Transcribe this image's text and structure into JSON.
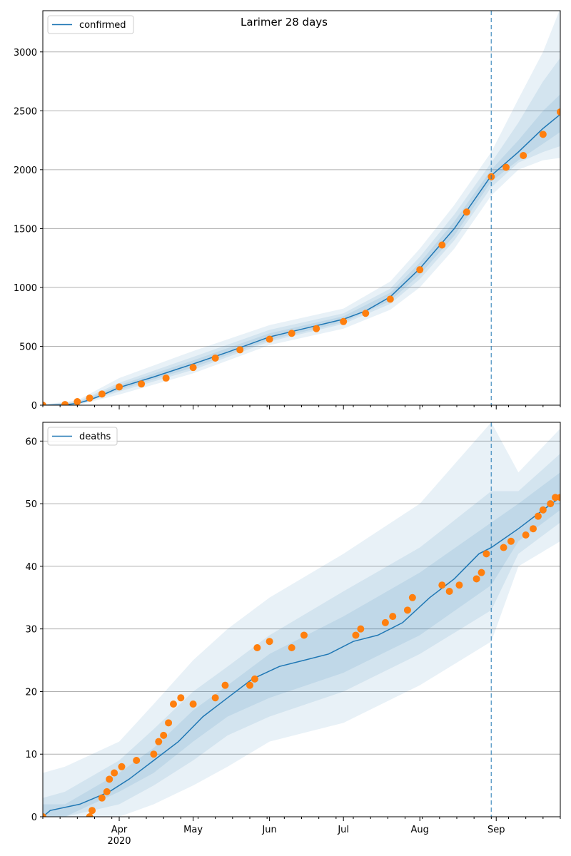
{
  "title": "Larimer 28 days",
  "colors": {
    "model_line": "#1f77b4",
    "band": "#1f77b4",
    "observed": "#ff7f0e",
    "grid": "#b0b0b0",
    "forecast_marker": "#1f77b4"
  },
  "x_axis": {
    "start": "2020-03-01",
    "end": "2020-09-27",
    "month_ticks": [
      {
        "date": "2020-04-01",
        "label": "Apr",
        "sublabel": "2020"
      },
      {
        "date": "2020-05-01",
        "label": "May",
        "sublabel": ""
      },
      {
        "date": "2020-06-01",
        "label": "Jun",
        "sublabel": ""
      },
      {
        "date": "2020-07-01",
        "label": "Jul",
        "sublabel": ""
      },
      {
        "date": "2020-08-01",
        "label": "Aug",
        "sublabel": ""
      },
      {
        "date": "2020-09-01",
        "label": "Sep",
        "sublabel": ""
      }
    ],
    "forecast_start": "2020-08-30"
  },
  "chart_data": [
    {
      "type": "line",
      "series_name": "confirmed",
      "legend": "confirmed",
      "legend_position": "top-left",
      "grid": true,
      "ylim": [
        0,
        3350
      ],
      "yticks": [
        0,
        500,
        1000,
        1500,
        2000,
        2500,
        3000
      ],
      "model_line": [
        [
          "2020-03-01",
          0
        ],
        [
          "2020-03-10",
          3
        ],
        [
          "2020-03-15",
          15
        ],
        [
          "2020-03-20",
          45
        ],
        [
          "2020-03-25",
          85
        ],
        [
          "2020-04-01",
          150
        ],
        [
          "2020-04-15",
          240
        ],
        [
          "2020-05-01",
          350
        ],
        [
          "2020-05-15",
          450
        ],
        [
          "2020-06-01",
          580
        ],
        [
          "2020-06-15",
          650
        ],
        [
          "2020-07-01",
          730
        ],
        [
          "2020-07-10",
          800
        ],
        [
          "2020-07-20",
          920
        ],
        [
          "2020-08-01",
          1160
        ],
        [
          "2020-08-15",
          1500
        ],
        [
          "2020-08-30",
          1950
        ],
        [
          "2020-09-10",
          2150
        ],
        [
          "2020-09-20",
          2350
        ],
        [
          "2020-09-27",
          2470
        ]
      ],
      "bands": [
        {
          "level": "outer",
          "dates": [
            "2020-03-01",
            "2020-03-15",
            "2020-04-01",
            "2020-05-01",
            "2020-06-01",
            "2020-07-01",
            "2020-07-20",
            "2020-08-01",
            "2020-08-15",
            "2020-08-30",
            "2020-09-10",
            "2020-09-20",
            "2020-09-27"
          ],
          "upper": [
            5,
            40,
            230,
            460,
            680,
            820,
            1050,
            1330,
            1700,
            2150,
            2600,
            3000,
            3370
          ],
          "lower": [
            0,
            0,
            90,
            270,
            510,
            650,
            810,
            1000,
            1330,
            1780,
            2000,
            2080,
            2100
          ]
        },
        {
          "level": "middle",
          "dates": [
            "2020-03-01",
            "2020-03-15",
            "2020-04-01",
            "2020-05-01",
            "2020-06-01",
            "2020-07-01",
            "2020-07-20",
            "2020-08-01",
            "2020-08-15",
            "2020-08-30",
            "2020-09-10",
            "2020-09-20",
            "2020-09-27"
          ],
          "upper": [
            3,
            30,
            190,
            410,
            640,
            780,
            990,
            1260,
            1620,
            2060,
            2400,
            2750,
            2950
          ],
          "lower": [
            0,
            5,
            115,
            300,
            540,
            690,
            860,
            1070,
            1400,
            1850,
            2060,
            2150,
            2200
          ]
        },
        {
          "level": "inner",
          "dates": [
            "2020-03-01",
            "2020-03-15",
            "2020-04-01",
            "2020-05-01",
            "2020-06-01",
            "2020-07-01",
            "2020-07-20",
            "2020-08-01",
            "2020-08-15",
            "2020-08-30",
            "2020-09-10",
            "2020-09-20",
            "2020-09-27"
          ],
          "upper": [
            2,
            22,
            170,
            380,
            610,
            755,
            955,
            1210,
            1560,
            2000,
            2250,
            2500,
            2640
          ],
          "lower": [
            0,
            8,
            130,
            320,
            555,
            705,
            885,
            1110,
            1440,
            1900,
            2080,
            2220,
            2320
          ]
        }
      ],
      "observed": [
        [
          "2020-03-01",
          0
        ],
        [
          "2020-03-10",
          5
        ],
        [
          "2020-03-15",
          30
        ],
        [
          "2020-03-20",
          60
        ],
        [
          "2020-03-25",
          95
        ],
        [
          "2020-04-01",
          155
        ],
        [
          "2020-04-10",
          180
        ],
        [
          "2020-04-20",
          230
        ],
        [
          "2020-05-01",
          320
        ],
        [
          "2020-05-10",
          400
        ],
        [
          "2020-05-20",
          470
        ],
        [
          "2020-06-01",
          560
        ],
        [
          "2020-06-10",
          610
        ],
        [
          "2020-06-20",
          650
        ],
        [
          "2020-07-01",
          710
        ],
        [
          "2020-07-10",
          780
        ],
        [
          "2020-07-20",
          900
        ],
        [
          "2020-08-01",
          1150
        ],
        [
          "2020-08-10",
          1360
        ],
        [
          "2020-08-20",
          1640
        ],
        [
          "2020-08-30",
          1940
        ],
        [
          "2020-09-05",
          2020
        ],
        [
          "2020-09-12",
          2120
        ],
        [
          "2020-09-20",
          2300
        ],
        [
          "2020-09-27",
          2490
        ]
      ]
    },
    {
      "type": "line",
      "series_name": "deaths",
      "legend": "deaths",
      "legend_position": "top-left",
      "grid": true,
      "ylim": [
        0,
        63
      ],
      "yticks": [
        0,
        10,
        20,
        30,
        40,
        50,
        60
      ],
      "model_line": [
        [
          "2020-03-01",
          0
        ],
        [
          "2020-03-04",
          1
        ],
        [
          "2020-03-16",
          2
        ],
        [
          "2020-03-22",
          3
        ],
        [
          "2020-03-28",
          4
        ],
        [
          "2020-04-05",
          6
        ],
        [
          "2020-04-15",
          9
        ],
        [
          "2020-04-25",
          12
        ],
        [
          "2020-05-05",
          16
        ],
        [
          "2020-05-15",
          19
        ],
        [
          "2020-05-25",
          22
        ],
        [
          "2020-06-05",
          24
        ],
        [
          "2020-06-15",
          25
        ],
        [
          "2020-06-25",
          26
        ],
        [
          "2020-07-05",
          28
        ],
        [
          "2020-07-15",
          29
        ],
        [
          "2020-07-25",
          31
        ],
        [
          "2020-08-05",
          35
        ],
        [
          "2020-08-15",
          38
        ],
        [
          "2020-08-25",
          42
        ],
        [
          "2020-08-30",
          43
        ],
        [
          "2020-09-10",
          46
        ],
        [
          "2020-09-20",
          49
        ],
        [
          "2020-09-27",
          51
        ]
      ],
      "bands": [
        {
          "level": "outer",
          "dates": [
            "2020-03-01",
            "2020-03-10",
            "2020-04-01",
            "2020-04-15",
            "2020-05-01",
            "2020-05-15",
            "2020-06-01",
            "2020-07-01",
            "2020-08-01",
            "2020-08-30",
            "2020-09-10",
            "2020-09-27"
          ],
          "upper": [
            7,
            8,
            12,
            18,
            25,
            30,
            35,
            42,
            50,
            63,
            55,
            62
          ],
          "lower": [
            0,
            0,
            0,
            2,
            5,
            8,
            12,
            15,
            21,
            28,
            40,
            44
          ]
        },
        {
          "level": "middle",
          "dates": [
            "2020-03-01",
            "2020-03-10",
            "2020-04-01",
            "2020-04-15",
            "2020-05-01",
            "2020-05-15",
            "2020-06-01",
            "2020-07-01",
            "2020-08-01",
            "2020-08-30",
            "2020-09-10",
            "2020-09-27"
          ],
          "upper": [
            3,
            4,
            9,
            14,
            20,
            24,
            29,
            36,
            43,
            52,
            52,
            58
          ],
          "lower": [
            0,
            0,
            2,
            5,
            9,
            13,
            16,
            20,
            26,
            33,
            42,
            47
          ]
        },
        {
          "level": "inner",
          "dates": [
            "2020-03-01",
            "2020-03-10",
            "2020-04-01",
            "2020-04-15",
            "2020-05-01",
            "2020-05-15",
            "2020-06-01",
            "2020-07-01",
            "2020-08-01",
            "2020-08-30",
            "2020-09-10",
            "2020-09-27"
          ],
          "upper": [
            2,
            2,
            7,
            11,
            17,
            21,
            26,
            32,
            39,
            47,
            50,
            55
          ],
          "lower": [
            0,
            0,
            4,
            7,
            12,
            16,
            19,
            23,
            29,
            37,
            44,
            49
          ]
        }
      ],
      "observed": [
        [
          "2020-03-01",
          0
        ],
        [
          "2020-03-20",
          0
        ],
        [
          "2020-03-21",
          1
        ],
        [
          "2020-03-25",
          3
        ],
        [
          "2020-03-27",
          4
        ],
        [
          "2020-03-28",
          6
        ],
        [
          "2020-03-30",
          7
        ],
        [
          "2020-04-02",
          8
        ],
        [
          "2020-04-08",
          9
        ],
        [
          "2020-04-15",
          10
        ],
        [
          "2020-04-17",
          12
        ],
        [
          "2020-04-19",
          13
        ],
        [
          "2020-04-21",
          15
        ],
        [
          "2020-04-23",
          18
        ],
        [
          "2020-04-26",
          19
        ],
        [
          "2020-05-01",
          18
        ],
        [
          "2020-05-10",
          19
        ],
        [
          "2020-05-14",
          21
        ],
        [
          "2020-05-24",
          21
        ],
        [
          "2020-05-26",
          22
        ],
        [
          "2020-05-27",
          27
        ],
        [
          "2020-06-01",
          28
        ],
        [
          "2020-06-10",
          27
        ],
        [
          "2020-06-15",
          29
        ],
        [
          "2020-07-06",
          29
        ],
        [
          "2020-07-08",
          30
        ],
        [
          "2020-07-18",
          31
        ],
        [
          "2020-07-21",
          32
        ],
        [
          "2020-07-27",
          33
        ],
        [
          "2020-07-29",
          35
        ],
        [
          "2020-08-10",
          37
        ],
        [
          "2020-08-13",
          36
        ],
        [
          "2020-08-17",
          37
        ],
        [
          "2020-08-24",
          38
        ],
        [
          "2020-08-26",
          39
        ],
        [
          "2020-08-28",
          42
        ],
        [
          "2020-09-04",
          43
        ],
        [
          "2020-09-07",
          44
        ],
        [
          "2020-09-13",
          45
        ],
        [
          "2020-09-16",
          46
        ],
        [
          "2020-09-18",
          48
        ],
        [
          "2020-09-20",
          49
        ],
        [
          "2020-09-23",
          50
        ],
        [
          "2020-09-25",
          51
        ],
        [
          "2020-09-27",
          51
        ]
      ]
    }
  ]
}
